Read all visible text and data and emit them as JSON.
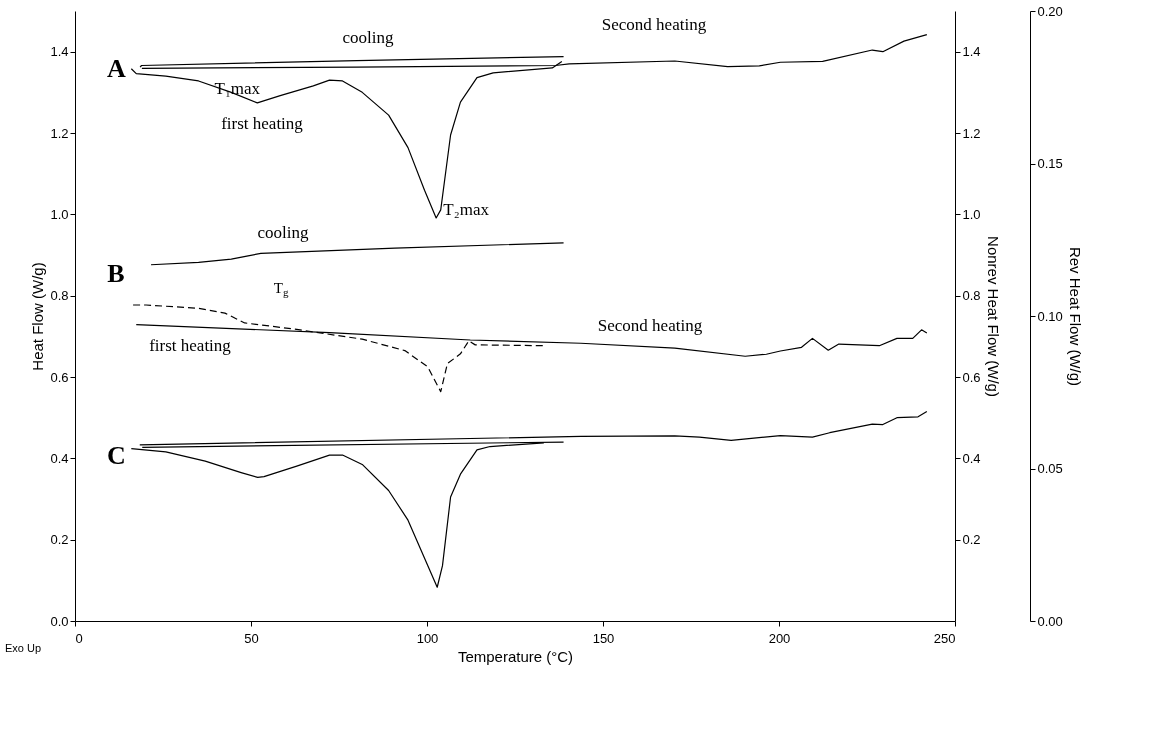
{
  "chart_data": {
    "type": "line",
    "xlabel": "Temperature (°C)",
    "ylabel": "Heat Flow (W/g)",
    "y2label": "Nonrev Heat Flow (W/g)",
    "y3label": "Rev Heat Flow (W/g)",
    "xlim": [
      0,
      250
    ],
    "xticks": [
      0,
      50,
      100,
      150,
      200,
      250
    ],
    "ylim": [
      0,
      1.5
    ],
    "yticks": [
      {
        "value": 0,
        "label": "0.0"
      },
      0.2,
      0.4,
      0.6,
      0.8,
      {
        "value": 1,
        "label": "1.0"
      },
      1.2,
      1.4
    ],
    "y2lim": [
      0,
      1.5
    ],
    "y2ticks": [
      0.2,
      0.4,
      0.6,
      0.8,
      {
        "value": 1,
        "label": "1.0"
      },
      1.2,
      1.4
    ],
    "y3lim": [
      0,
      0.2
    ],
    "y3ticks": [
      {
        "value": 0,
        "label": "0.00"
      },
      0.05,
      {
        "value": 0.1,
        "label": "0.10"
      },
      0.15,
      {
        "value": 0.2,
        "label": "0.20"
      }
    ],
    "grid": false,
    "line_style": "solid",
    "series": [
      {
        "color": "#000000",
        "x": [
          16.0,
          17.4,
          25.8,
          35.1,
          44.4,
          51.8,
          58.3,
          67.7,
          72.3,
          76.0,
          81.6,
          89.1,
          94.6,
          99.3,
          102.6,
          103.9,
          106.7,
          109.5,
          114.2,
          118.8,
          135.6,
          138.3
        ],
        "values": [
          1.358,
          1.346,
          1.34,
          1.328,
          1.3,
          1.274,
          1.292,
          1.316,
          1.33,
          1.328,
          1.3,
          1.244,
          1.164,
          1.059,
          0.991,
          1.011,
          1.195,
          1.276,
          1.336,
          1.348,
          1.36,
          1.376
        ]
      },
      {
        "color": "#000000",
        "x": [
          138.8,
          80,
          18.9,
          18.5
        ],
        "values": [
          1.388,
          1.378,
          1.366,
          1.362
        ]
      },
      {
        "color": "#000000",
        "x": [
          19.0,
          80,
          136.5,
          140.4,
          170.4,
          185.4,
          194.4,
          200.4,
          212.4,
          226.5,
          229.5,
          235.5,
          242.0
        ],
        "values": [
          1.359,
          1.362,
          1.366,
          1.37,
          1.377,
          1.363,
          1.365,
          1.374,
          1.376,
          1.404,
          1.4,
          1.426,
          1.442
        ]
      },
      {
        "color": "#000000",
        "x": [
          138.8,
          90.9,
          52.8,
          44.4,
          35.1,
          21.6
        ],
        "values": [
          0.93,
          0.917,
          0.904,
          0.89,
          0.882,
          0.876
        ]
      },
      {
        "color": "#000000",
        "line_style": "dashed",
        "x": [
          16.5,
          20.2,
          35.1,
          42.6,
          48.2,
          63.0,
          81.6,
          93.7,
          100.2,
          103.9,
          105.8,
          109.5,
          111.9,
          113.7,
          133.7
        ],
        "values": [
          0.777,
          0.777,
          0.769,
          0.757,
          0.733,
          0.717,
          0.693,
          0.665,
          0.625,
          0.564,
          0.633,
          0.657,
          0.689,
          0.679,
          0.677
        ]
      },
      {
        "color": "#000000",
        "x": [
          17.4,
          72.3,
          112.3,
          143.7,
          170.4,
          190.4,
          196.4,
          200.4,
          206.4,
          209.5,
          214.0,
          217.0,
          228.5,
          233.5,
          238.0,
          240.5,
          242.0
        ],
        "values": [
          0.729,
          0.709,
          0.691,
          0.683,
          0.671,
          0.651,
          0.656,
          0.664,
          0.673,
          0.695,
          0.666,
          0.681,
          0.677,
          0.695,
          0.695,
          0.716,
          0.708
        ]
      },
      {
        "color": "#000000",
        "x": [
          16.0,
          25.8,
          37.0,
          47.2,
          51.9,
          53.7,
          63.0,
          72.3,
          76.0,
          81.6,
          89.1,
          94.6,
          102.9,
          104.4,
          106.7,
          109.5,
          114.2,
          117.9,
          133.2
        ],
        "values": [
          0.424,
          0.416,
          0.393,
          0.365,
          0.353,
          0.355,
          0.381,
          0.408,
          0.408,
          0.385,
          0.321,
          0.248,
          0.083,
          0.136,
          0.305,
          0.361,
          0.421,
          0.429,
          0.438
        ]
      },
      {
        "color": "#000000",
        "x": [
          138.8,
          19.1
        ],
        "values": [
          0.44,
          0.427
        ]
      },
      {
        "color": "#000000",
        "x": [
          18.4,
          143.7,
          170.4,
          177.4,
          186.4,
          200.4,
          209.5,
          214.4,
          226.5,
          229.5,
          233.5,
          239.5,
          242.0
        ],
        "values": [
          0.433,
          0.454,
          0.455,
          0.452,
          0.444,
          0.456,
          0.452,
          0.463,
          0.484,
          0.483,
          0.5,
          0.502,
          0.515
        ]
      }
    ],
    "annotations": [
      {
        "text": "A",
        "x": 16.0,
        "y": 1.358
      },
      {
        "text": "B",
        "x": 21.6,
        "y": 0.876
      },
      {
        "text": "C",
        "x": 16.0,
        "y": 0.424
      },
      "cooling",
      "Second heating",
      {
        "text": "T₁max",
        "x": 51.8,
        "y": 1.274
      },
      "first heating",
      {
        "text": "T₂max",
        "x": 102.6,
        "y": 0.991
      },
      "cooling",
      "T$_{g}$",
      "first heating",
      "Second heating",
      "Exo Up"
    ]
  }
}
